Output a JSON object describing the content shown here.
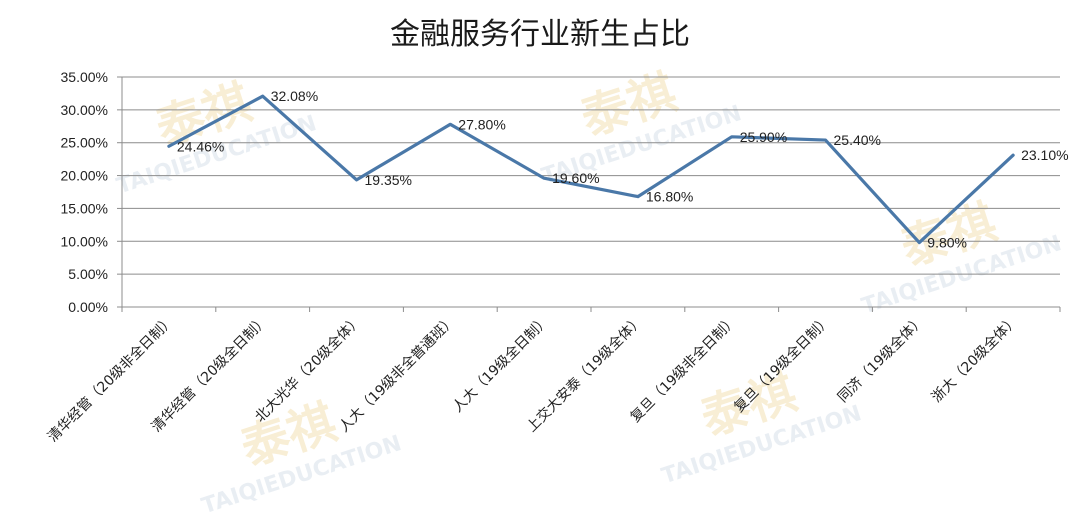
{
  "chart_data": {
    "type": "line",
    "title": "金融服务行业新生占比",
    "categories": [
      "清华经管（20级非全日制）",
      "清华经管（20级全日制）",
      "北大光华（20级全体）",
      "人大（19级非全普通班）",
      "人大（19级全日制）",
      "上交大安泰（19级全体）",
      "复旦（19级非全日制）",
      "复旦（19级全日制）",
      "同济（19级全体）",
      "浙大（20级全体）"
    ],
    "values": [
      24.46,
      32.08,
      19.35,
      27.8,
      19.6,
      16.8,
      25.9,
      25.4,
      9.8,
      23.1
    ],
    "value_labels": [
      "24.46%",
      "32.08%",
      "19.35%",
      "27.80%",
      "19.60%",
      "16.80%",
      "25.90%",
      "25.40%",
      "9.80%",
      "23.10%"
    ],
    "y_ticks": [
      "0.00%",
      "5.00%",
      "10.00%",
      "15.00%",
      "20.00%",
      "25.00%",
      "30.00%",
      "35.00%"
    ],
    "ylim": [
      0,
      35
    ],
    "grid": true,
    "legend": "none",
    "line_color": "#4a78a8"
  },
  "watermark": {
    "brand_cn": "泰祺",
    "brand_en": "TAIQIEDUCATION"
  }
}
